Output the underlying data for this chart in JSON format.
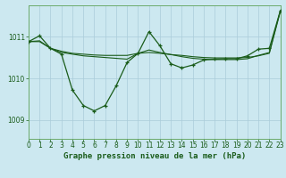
{
  "background_color": "#cce8f0",
  "grid_color": "#aaccda",
  "line_color": "#1a5c1a",
  "title": "Graphe pression niveau de la mer (hPa)",
  "xlim": [
    0,
    23
  ],
  "ylim": [
    1008.55,
    1011.75
  ],
  "yticks": [
    1009,
    1010,
    1011
  ],
  "xticks": [
    0,
    1,
    2,
    3,
    4,
    5,
    6,
    7,
    8,
    9,
    10,
    11,
    12,
    13,
    14,
    15,
    16,
    17,
    18,
    19,
    20,
    21,
    22,
    23
  ],
  "series1_x": [
    0,
    1,
    2,
    3,
    4,
    5,
    6,
    7,
    8,
    9,
    10,
    11,
    12,
    13,
    14,
    15,
    16,
    17,
    18,
    19,
    20,
    21,
    22,
    23
  ],
  "series1_y": [
    1010.88,
    1010.88,
    1010.72,
    1010.65,
    1010.6,
    1010.58,
    1010.56,
    1010.55,
    1010.55,
    1010.55,
    1010.6,
    1010.62,
    1010.6,
    1010.57,
    1010.55,
    1010.52,
    1010.5,
    1010.49,
    1010.49,
    1010.49,
    1010.5,
    1010.54,
    1010.6,
    1011.6
  ],
  "series2_x": [
    0,
    1,
    2,
    3,
    4,
    5,
    6,
    7,
    8,
    9,
    10,
    11,
    12,
    13,
    14,
    15,
    16,
    17,
    18,
    19,
    20,
    21,
    22,
    23
  ],
  "series2_y": [
    1010.88,
    1010.9,
    1010.72,
    1010.62,
    1010.58,
    1010.54,
    1010.52,
    1010.5,
    1010.48,
    1010.46,
    1010.6,
    1010.68,
    1010.62,
    1010.57,
    1010.52,
    1010.48,
    1010.46,
    1010.45,
    1010.45,
    1010.45,
    1010.47,
    1010.55,
    1010.62,
    1011.62
  ],
  "series3_x": [
    0,
    1,
    2,
    3,
    4,
    5,
    6,
    7,
    8,
    9,
    10,
    11,
    12,
    13,
    14,
    15,
    16,
    17,
    18,
    19,
    20,
    21,
    22,
    23
  ],
  "series3_y": [
    1010.88,
    1011.02,
    1010.72,
    1010.58,
    1009.72,
    1009.35,
    1009.22,
    1009.35,
    1009.82,
    1010.38,
    1010.6,
    1011.12,
    1010.78,
    1010.35,
    1010.25,
    1010.32,
    1010.44,
    1010.46,
    1010.47,
    1010.47,
    1010.54,
    1010.7,
    1010.72,
    1011.62
  ],
  "title_fontsize": 6.5,
  "tick_fontsize": 5.5,
  "tick_color": "#1a5c1a",
  "spine_color": "#6aaa6a",
  "figwidth": 3.2,
  "figheight": 2.0,
  "dpi": 100
}
